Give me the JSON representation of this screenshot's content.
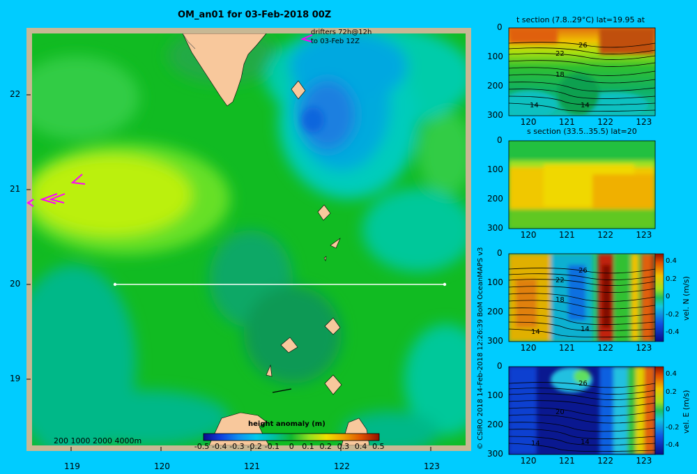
{
  "colors": {
    "background": "#00ccff",
    "frame": "#c8b894",
    "land": "#f8c89c",
    "track": "#ffffff",
    "drifter": "#ff00ff"
  },
  "main_title": "OM_an01 for 03-Feb-2018 00Z",
  "drifters_note": [
    "drifters 72h@12h",
    "to 03-Feb 12Z"
  ],
  "depth_legend": "200  1000  2000  4000m",
  "credit": "© CSIRO 2018   14-Feb-2018 12:26:39 BoM OceanMAPS v3",
  "colorbar_title": "height anomaly  (m)",
  "panels": {
    "t_title": "t section (7.8..29°C) lat=19.95 at",
    "s_title": "s section (33.5..35.5) lat=20",
    "vn_label": "vel. N  (m/s)",
    "ve_label": "vel. E  (m/s)"
  },
  "chart_data": [
    {
      "type": "heatmap",
      "name": "sea level height anomaly map",
      "title": "OM_an01 for 03-Feb-2018 00Z",
      "xlim": [
        118.5,
        123.5
      ],
      "ylim": [
        18.3,
        22.7
      ],
      "xticks": [
        "119",
        "120",
        "121",
        "122",
        "123"
      ],
      "yticks": [
        "19",
        "20",
        "21",
        "22"
      ],
      "colorbar": {
        "label": "height anomaly  (m)",
        "range": [
          -0.5,
          0.5
        ],
        "ticks": [
          "-0.5",
          "-0.4",
          "-0.3",
          "-0.2",
          "-0.1",
          "0",
          "0.1",
          "0.2",
          "0.3",
          "0.4",
          "0.5"
        ]
      },
      "section_line": {
        "lat": 20.0,
        "lon_start": 119.5,
        "lon_end": 123.2
      },
      "features": [
        {
          "label": "high anomaly",
          "lon": 119.4,
          "lat": 20.95,
          "value": 0.2
        },
        {
          "label": "low anomaly",
          "lon": 121.75,
          "lat": 21.8,
          "value": -0.3
        }
      ]
    },
    {
      "type": "heatmap",
      "title": "t section (7.8..29°C) lat=19.95 at",
      "xlim": [
        119.5,
        123.3
      ],
      "ylim": [
        300,
        0
      ],
      "xticks": [
        "120",
        "121",
        "122",
        "123"
      ],
      "yticks": [
        "0",
        "100",
        "200",
        "300"
      ],
      "contour_labels": [
        "26",
        "22",
        "18",
        "14",
        "14"
      ]
    },
    {
      "type": "heatmap",
      "title": "s section (33.5..35.5) lat=20",
      "xlim": [
        119.5,
        123.3
      ],
      "ylim": [
        300,
        0
      ],
      "xticks": [
        "120",
        "121",
        "122",
        "123"
      ],
      "yticks": [
        "0",
        "100",
        "200",
        "300"
      ]
    },
    {
      "type": "heatmap",
      "ylabel": "vel. N  (m/s)",
      "xlim": [
        119.5,
        123.3
      ],
      "ylim": [
        300,
        0
      ],
      "xticks": [
        "120",
        "121",
        "122",
        "123"
      ],
      "yticks": [
        "0",
        "100",
        "200",
        "300"
      ],
      "contour_labels": [
        "26",
        "22",
        "18",
        "14",
        "14"
      ],
      "colorbar": {
        "range": [
          -0.4,
          0.4
        ],
        "ticks": [
          "0.4",
          "0.2",
          "0",
          "-0.2",
          "-0.4"
        ]
      }
    },
    {
      "type": "heatmap",
      "ylabel": "vel. E  (m/s)",
      "xlim": [
        119.5,
        123.3
      ],
      "ylim": [
        300,
        0
      ],
      "xticks": [
        "120",
        "121",
        "122",
        "123"
      ],
      "yticks": [
        "0",
        "100",
        "200",
        "300"
      ],
      "contour_labels": [
        "26",
        "20",
        "14",
        "14"
      ],
      "colorbar": {
        "range": [
          -0.4,
          0.4
        ],
        "ticks": [
          "0.4",
          "0.2",
          "0",
          "-0.2",
          "-0.4"
        ]
      }
    }
  ]
}
